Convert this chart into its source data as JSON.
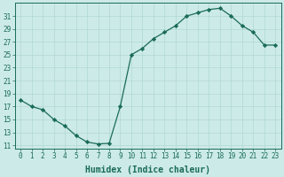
{
  "x": [
    0,
    1,
    2,
    3,
    4,
    5,
    6,
    7,
    8,
    9,
    10,
    11,
    12,
    13,
    14,
    15,
    16,
    17,
    18,
    19,
    20,
    21,
    22,
    23
  ],
  "y": [
    18,
    17,
    16.5,
    15,
    14,
    12.5,
    11.5,
    11.2,
    11.3,
    17,
    25,
    26,
    27.5,
    28.5,
    29.5,
    31,
    31.5,
    32,
    32.2,
    31,
    29.5,
    28.5,
    26.5,
    26.5
  ],
  "line_color": "#1a6b5a",
  "marker": "D",
  "marker_size": 2.2,
  "bg_color": "#cceae8",
  "grid_color": "#b0d8d4",
  "xlabel": "Humidex (Indice chaleur)",
  "xlim": [
    -0.5,
    23.5
  ],
  "ylim": [
    10.5,
    33
  ],
  "yticks": [
    11,
    13,
    15,
    17,
    19,
    21,
    23,
    25,
    27,
    29,
    31
  ],
  "xticks": [
    0,
    1,
    2,
    3,
    4,
    5,
    6,
    7,
    8,
    9,
    10,
    11,
    12,
    13,
    14,
    15,
    16,
    17,
    18,
    19,
    20,
    21,
    22,
    23
  ],
  "axis_color": "#1a6b5a",
  "xlabel_fontsize": 7,
  "tick_fontsize": 5.5,
  "linewidth": 0.9
}
